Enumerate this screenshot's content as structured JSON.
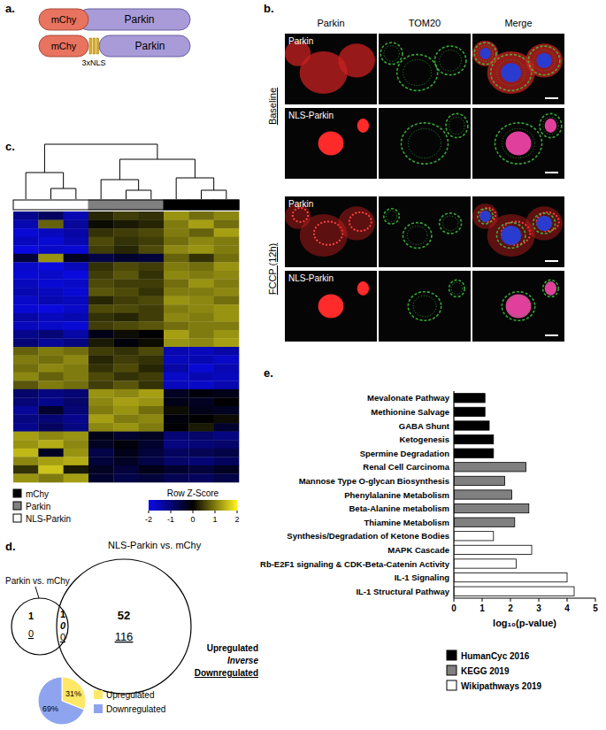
{
  "panels": {
    "a": {
      "label": "a.",
      "constructs": [
        {
          "tag": "mChy",
          "protein": "Parkin"
        },
        {
          "tag": "mChy",
          "insert": "3xNLS",
          "protein": "Parkin"
        }
      ]
    },
    "b": {
      "label": "b.",
      "columns": [
        "Parkin",
        "TOM20",
        "Merge"
      ],
      "groups": [
        {
          "label": "Baseline",
          "rows": [
            "Parkin",
            "NLS-Parkin"
          ]
        },
        {
          "label": "FCCP (12h)",
          "rows": [
            "Parkin",
            "NLS-Parkin"
          ]
        }
      ]
    },
    "c": {
      "label": "c."
    },
    "d": {
      "label": "d.",
      "sets": [
        {
          "name": "Parkin vs. mChy",
          "only": {
            "upregulated": 1,
            "downregulated": 0
          }
        },
        {
          "name": "NLS-Parkin vs. mChy",
          "only": {
            "upregulated": 52,
            "downregulated": 116
          }
        }
      ],
      "overlap": {
        "upregulated": 1,
        "inverse": 0,
        "downregulated": 0
      },
      "key": {
        "upregulated": "Upregulated",
        "inverse": "Inverse",
        "downregulated": "Downregulated"
      }
    },
    "e": {
      "label": "e."
    }
  },
  "chart_data": [
    {
      "type": "heatmap",
      "groups": [
        {
          "name": "mChy",
          "color": "#000000"
        },
        {
          "name": "Parkin",
          "color": "#808080"
        },
        {
          "name": "NLS-Parkin",
          "color": "#ffffff"
        }
      ],
      "columns": [
        "NLS-Parkin",
        "NLS-Parkin",
        "NLS-Parkin",
        "Parkin",
        "Parkin",
        "Parkin",
        "mChy",
        "mChy",
        "mChy"
      ],
      "color_label": "Row Z-Score",
      "color_range": [
        -2,
        2
      ],
      "color_ticks": [
        -2,
        -1,
        0,
        1,
        2
      ],
      "cells": [
        [
          -1.2,
          -0.8,
          -1.5,
          0.3,
          0.5,
          0.4,
          1.2,
          0.9,
          1.1
        ],
        [
          -1.5,
          0.8,
          -1.3,
          0.1,
          0.2,
          0.3,
          1.0,
          1.3,
          0.9
        ],
        [
          -1.8,
          -1.6,
          -1.4,
          0.4,
          0.5,
          0.6,
          1.0,
          0.8,
          1.3
        ],
        [
          -1.6,
          -1.8,
          -1.5,
          0.6,
          0.4,
          0.5,
          0.9,
          1.1,
          1.0
        ],
        [
          -1.9,
          -1.7,
          -1.8,
          0.5,
          0.3,
          0.6,
          1.1,
          1.2,
          1.0
        ],
        [
          -0.5,
          1.2,
          -0.3,
          -0.6,
          -0.4,
          -0.5,
          0.8,
          0.4,
          0.9
        ],
        [
          -1.7,
          -1.9,
          -1.6,
          0.4,
          0.6,
          0.5,
          1.0,
          0.9,
          1.2
        ],
        [
          -1.8,
          -1.7,
          -1.9,
          0.5,
          0.7,
          0.4,
          1.1,
          1.0,
          1.1
        ],
        [
          -1.6,
          -1.8,
          -1.7,
          0.6,
          0.5,
          0.5,
          0.9,
          1.2,
          1.0
        ],
        [
          -1.5,
          -1.6,
          -1.8,
          0.7,
          0.6,
          0.4,
          1.0,
          1.0,
          1.1
        ],
        [
          -1.7,
          -1.5,
          -1.6,
          0.3,
          0.5,
          0.6,
          1.2,
          1.1,
          0.9
        ],
        [
          -1.8,
          -1.9,
          -1.7,
          0.6,
          0.6,
          0.5,
          1.0,
          1.1,
          1.2
        ],
        [
          -1.4,
          -1.6,
          -1.5,
          0.4,
          0.3,
          0.5,
          1.1,
          1.0,
          1.2
        ],
        [
          -1.6,
          -1.7,
          -1.8,
          0.5,
          0.6,
          0.7,
          0.9,
          1.0,
          1.0
        ],
        [
          -1.2,
          -1.0,
          -1.4,
          -0.2,
          0.1,
          0.0,
          1.3,
          1.0,
          1.2
        ],
        [
          -1.0,
          -1.3,
          -1.1,
          0.2,
          -0.1,
          0.1,
          1.2,
          1.1,
          1.3
        ],
        [
          0.8,
          1.0,
          0.9,
          0.5,
          0.4,
          0.6,
          -1.5,
          -1.6,
          -1.4
        ],
        [
          1.0,
          0.9,
          1.1,
          0.3,
          0.5,
          0.4,
          -1.6,
          -1.5,
          -1.7
        ],
        [
          0.9,
          1.1,
          1.0,
          0.4,
          0.6,
          0.3,
          -1.4,
          -1.8,
          -1.5
        ],
        [
          1.1,
          0.8,
          1.0,
          0.6,
          0.4,
          0.5,
          -1.7,
          -1.5,
          -1.6
        ],
        [
          0.7,
          1.0,
          0.9,
          0.5,
          0.7,
          0.4,
          -1.6,
          -1.7,
          -1.5
        ],
        [
          -0.9,
          -1.1,
          -1.0,
          1.2,
          1.1,
          1.3,
          -0.3,
          -0.1,
          -0.2
        ],
        [
          -1.0,
          -1.2,
          -0.9,
          1.1,
          1.3,
          1.2,
          -0.2,
          -0.3,
          0.0
        ],
        [
          -1.3,
          -0.4,
          -1.0,
          1.0,
          1.2,
          0.9,
          0.1,
          -0.2,
          -0.3
        ],
        [
          -1.1,
          -1.0,
          -1.2,
          1.3,
          1.0,
          1.1,
          -0.1,
          0.0,
          0.1
        ],
        [
          -1.2,
          -0.8,
          -1.1,
          1.1,
          1.2,
          1.0,
          0.0,
          0.2,
          -0.4
        ],
        [
          1.3,
          1.1,
          1.2,
          -0.2,
          -0.4,
          -0.3,
          -1.0,
          -0.9,
          -1.1
        ],
        [
          1.2,
          1.4,
          1.1,
          -0.3,
          -0.1,
          -0.4,
          -1.1,
          -1.0,
          -0.9
        ],
        [
          1.5,
          -0.3,
          1.2,
          -0.6,
          -0.2,
          -0.5,
          -0.8,
          -0.7,
          -0.6
        ],
        [
          1.1,
          1.3,
          1.4,
          -0.5,
          -0.3,
          -0.6,
          -0.9,
          -1.0,
          -0.8
        ],
        [
          0.4,
          1.6,
          0.2,
          -0.3,
          -0.5,
          -0.2,
          -0.4,
          -0.5,
          -0.3
        ],
        [
          1.2,
          1.0,
          1.3,
          -0.4,
          -0.6,
          -0.5,
          -0.7,
          -0.8,
          -0.6
        ]
      ]
    },
    {
      "type": "pie",
      "categories": [
        "Upregulated",
        "Downregulated"
      ],
      "values": [
        31,
        69
      ],
      "value_labels": [
        "31%",
        "69%"
      ],
      "colors": [
        "#ffe866",
        "#8ea4ee"
      ],
      "data_labels": true,
      "legend": "right"
    },
    {
      "type": "bar",
      "orientation": "horizontal",
      "categories": [
        "Mevalonate Pathway",
        "Methionine Salvage",
        "GABA Shunt",
        "Ketogenesis",
        "Spermine Degradation",
        "Renal Cell Carcinoma",
        "Mannose Type O-glycan Biosynthesis",
        "Phenylalanine Metabolism",
        "Beta-Alanine metabolism",
        "Thiamine Metabolism",
        "Synthesis/Degradation of Ketone Bodies",
        "MAPK Cascade",
        "Rb-E2F1 signaling & CDK-Beta-Catenin Activity",
        "IL-1 Signaling",
        "IL-1 Structural Pathway"
      ],
      "series": [
        {
          "name": "HumanCyc 2016",
          "color": "#000000",
          "values": [
            1.1,
            1.1,
            1.25,
            1.4,
            1.4,
            null,
            null,
            null,
            null,
            null,
            null,
            null,
            null,
            null,
            null
          ]
        },
        {
          "name": "KEGG 2019",
          "color": "#808080",
          "values": [
            null,
            null,
            null,
            null,
            null,
            2.55,
            1.8,
            2.05,
            2.65,
            2.15,
            null,
            null,
            null,
            null,
            null
          ]
        },
        {
          "name": "Wikipathways 2019",
          "color": "#ffffff",
          "values": [
            null,
            null,
            null,
            null,
            null,
            null,
            null,
            null,
            null,
            null,
            1.4,
            2.75,
            2.2,
            4,
            4.25
          ]
        }
      ],
      "xlabel": "log₁₀(p-value)",
      "xlim": [
        0,
        5
      ],
      "xticks": [
        0,
        1,
        2,
        3,
        4,
        5
      ],
      "grid": false,
      "legend": "bottom"
    }
  ]
}
